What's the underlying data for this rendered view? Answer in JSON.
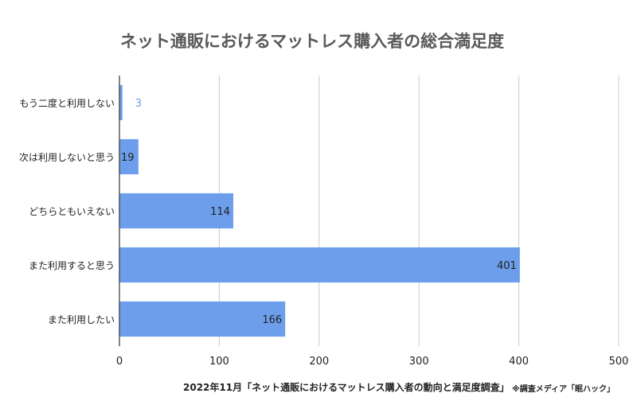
{
  "chart_data": {
    "type": "bar",
    "orientation": "horizontal",
    "title": "ネット通販におけるマットレス購入者の総合満足度",
    "categories": [
      "もう二度と利用しない",
      "次は利用しないと思う",
      "どちらともいえない",
      "また利用すると思う",
      "また利用したい"
    ],
    "values": [
      3,
      19,
      114,
      401,
      166
    ],
    "xlim": [
      0,
      500
    ],
    "x_ticks": [
      0,
      100,
      200,
      300,
      400,
      500
    ],
    "grid": true,
    "legend": "none",
    "colors": {
      "bar": "#6d9eeb",
      "axis": "#333333",
      "grid": "#cccccc",
      "title": "#595959",
      "text": "#222222",
      "outside_label": "#6d9eeb"
    }
  },
  "footer": {
    "main": "2022年11月「ネット通販におけるマットレス購入者の動向と満足度調査」",
    "source": "※調査メディア「眠ハック」"
  }
}
